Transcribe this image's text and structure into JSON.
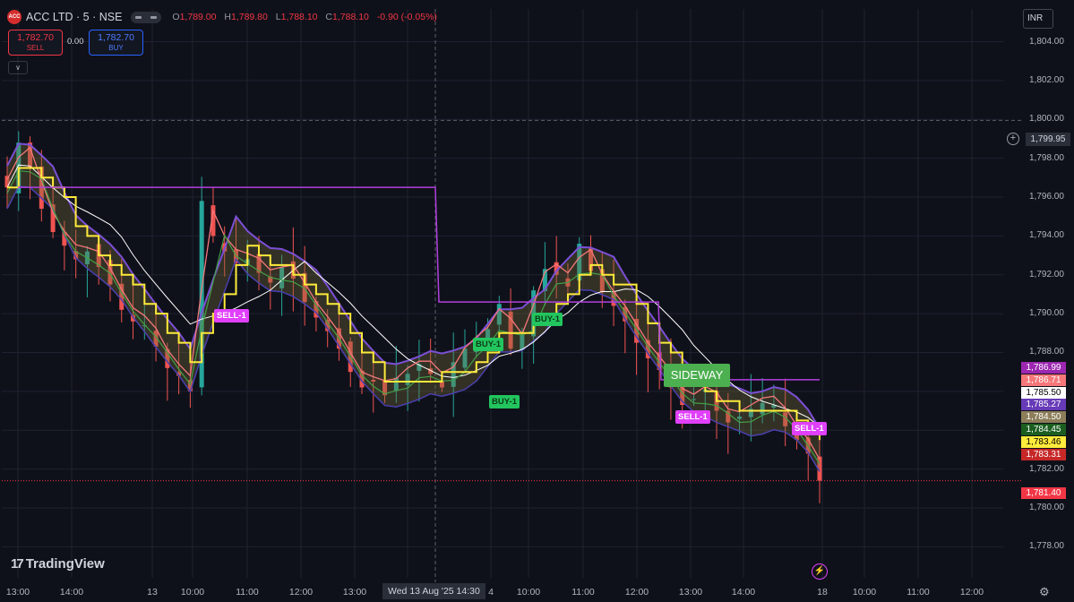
{
  "header": {
    "logo_text": "ACC",
    "symbol": "ACC LTD · 5 · NSE",
    "ohlc": {
      "o_label": "O",
      "o": "1,789.00",
      "h_label": "H",
      "h": "1,789.80",
      "l_label": "L",
      "l": "1,788.10",
      "c_label": "C",
      "c": "1,788.10",
      "change": "-0.90 (-0.05%)"
    }
  },
  "trade": {
    "sell_price": "1,782.70",
    "sell_label": "SELL",
    "spread": "0.00",
    "buy_price": "1,782.70",
    "buy_label": "BUY"
  },
  "currency": "INR",
  "crosshair": {
    "price": "1,799.95",
    "time": "Wed 13 Aug '25  14:30"
  },
  "price_axis": [
    "1,804.00",
    "1,802.00",
    "1,800.00",
    "1,798.00",
    "1,796.00",
    "1,794.00",
    "1,792.00",
    "1,790.00",
    "1,788.00",
    "1,786.00",
    "1,782.00",
    "1,780.00",
    "1,778.00"
  ],
  "time_axis": [
    "13:00",
    "14:00",
    "13",
    "10:00",
    "11:00",
    "12:00",
    "13:00",
    "4",
    "10:00",
    "11:00",
    "12:00",
    "13:00",
    "14:00",
    "18",
    "10:00",
    "11:00",
    "12:00"
  ],
  "right_labels": [
    {
      "value": "1,786.99",
      "color": "#9c27b0"
    },
    {
      "value": "1,786.71",
      "color": "#f5777a"
    },
    {
      "value": "1,785.50",
      "color": "#ffffff"
    },
    {
      "value": "1,785.27",
      "color": "#673ab7"
    },
    {
      "value": "1,784.50",
      "color": "#8d7e5a"
    },
    {
      "value": "1,784.45",
      "color": "#1b5e20"
    },
    {
      "value": "1,783.46",
      "color": "#ffeb3b"
    },
    {
      "value": "1,783.31",
      "color": "#c62828"
    },
    {
      "value": "1,781.40",
      "color": "#f23645"
    }
  ],
  "signals": {
    "sell_1": "SELL-1",
    "buy_1": "BUY-1",
    "sideway": "SIDEWAY"
  },
  "brand": "TradingView",
  "chart_data": {
    "type": "candlestick",
    "symbol": "ACC LTD",
    "interval": "5",
    "exchange": "NSE",
    "ylim": [
      1777,
      1805.5
    ],
    "last_price": 1781.4,
    "series_close_approx": [
      1796.5,
      1798.8,
      1797.5,
      1795.4,
      1794.2,
      1793.5,
      1792.8,
      1793.2,
      1792.4,
      1791.5,
      1790.2,
      1789.6,
      1789.4,
      1788.3,
      1787.2,
      1786.8,
      1786.0,
      1795.8,
      1794.0,
      1793.2,
      1792.6,
      1792.8,
      1792.1,
      1791.6,
      1792.4,
      1791.8,
      1790.6,
      1789.8,
      1789.1,
      1788.2,
      1787.0,
      1786.2,
      1786.5,
      1785.8,
      1786.7,
      1786.9,
      1787.4,
      1786.9,
      1786.2,
      1787.5,
      1788.2,
      1788.6,
      1789.2,
      1790.5,
      1788.2,
      1788.9,
      1791.2,
      1792.3,
      1792.0,
      1791.4,
      1793.6,
      1792.2,
      1791.1,
      1790.4,
      1789.6,
      1788.5,
      1787.7,
      1787.1,
      1786.2,
      1785.3,
      1785.6,
      1786.1,
      1785.0,
      1784.4,
      1784.7,
      1785.1,
      1785.4,
      1785.3,
      1784.2,
      1783.5,
      1782.8,
      1781.4
    ]
  }
}
